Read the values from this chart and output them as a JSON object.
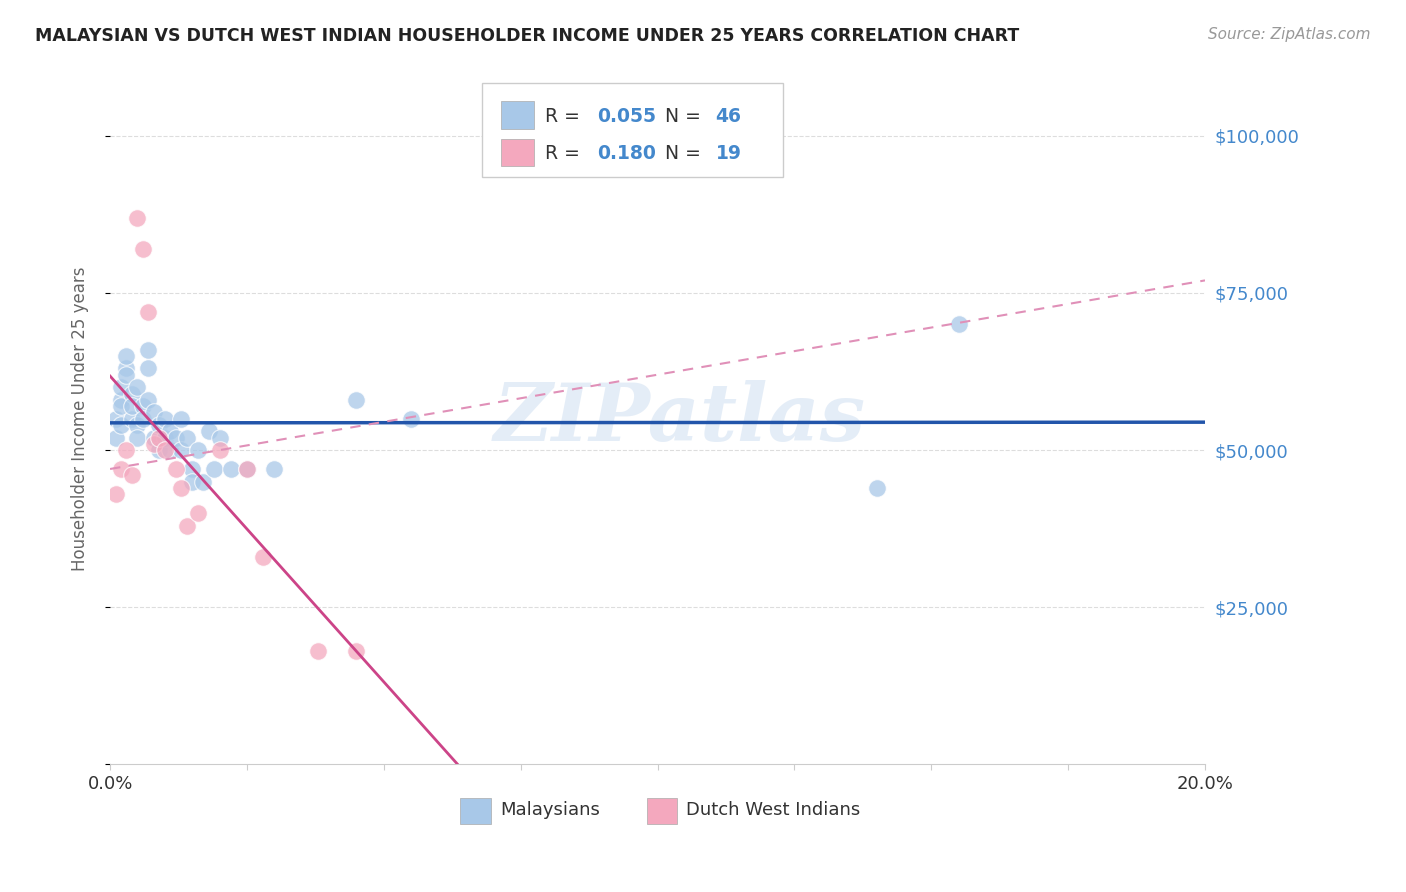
{
  "title": "MALAYSIAN VS DUTCH WEST INDIAN HOUSEHOLDER INCOME UNDER 25 YEARS CORRELATION CHART",
  "source": "Source: ZipAtlas.com",
  "ylabel": "Householder Income Under 25 years",
  "xlim": [
    0.0,
    0.2
  ],
  "ylim": [
    0,
    110000
  ],
  "watermark": "ZIPatlas",
  "legend_blue_r": "0.055",
  "legend_blue_n": "46",
  "legend_pink_r": "0.180",
  "legend_pink_n": "19",
  "blue_color": "#a8c8e8",
  "pink_color": "#f4a8be",
  "line_blue_color": "#2255aa",
  "line_pink_solid_color": "#cc4488",
  "line_pink_dash_color": "#e090b8",
  "title_color": "#222222",
  "axis_label_color": "#666666",
  "right_tick_color": "#4488cc",
  "background_color": "#ffffff",
  "grid_color": "#dddddd",
  "mal_x": [
    0.001,
    0.001,
    0.002,
    0.002,
    0.002,
    0.002,
    0.003,
    0.003,
    0.003,
    0.004,
    0.004,
    0.004,
    0.005,
    0.005,
    0.005,
    0.006,
    0.006,
    0.007,
    0.007,
    0.007,
    0.008,
    0.008,
    0.009,
    0.009,
    0.01,
    0.01,
    0.011,
    0.011,
    0.012,
    0.013,
    0.013,
    0.014,
    0.015,
    0.015,
    0.016,
    0.017,
    0.018,
    0.019,
    0.02,
    0.022,
    0.025,
    0.03,
    0.045,
    0.055,
    0.14,
    0.155
  ],
  "mal_y": [
    52000,
    55000,
    58000,
    54000,
    60000,
    57000,
    63000,
    65000,
    62000,
    59000,
    55000,
    57000,
    54000,
    60000,
    52000,
    57000,
    55000,
    63000,
    66000,
    58000,
    52000,
    56000,
    50000,
    54000,
    52000,
    55000,
    53000,
    50000,
    52000,
    55000,
    50000,
    52000,
    47000,
    45000,
    50000,
    45000,
    53000,
    47000,
    52000,
    47000,
    47000,
    47000,
    58000,
    55000,
    44000,
    70000
  ],
  "dutch_x": [
    0.001,
    0.002,
    0.003,
    0.004,
    0.005,
    0.006,
    0.007,
    0.008,
    0.009,
    0.01,
    0.012,
    0.013,
    0.014,
    0.016,
    0.02,
    0.025,
    0.028,
    0.038,
    0.045
  ],
  "dutch_y": [
    43000,
    47000,
    50000,
    46000,
    87000,
    82000,
    72000,
    51000,
    52000,
    50000,
    47000,
    44000,
    38000,
    40000,
    50000,
    47000,
    33000,
    18000,
    18000
  ]
}
